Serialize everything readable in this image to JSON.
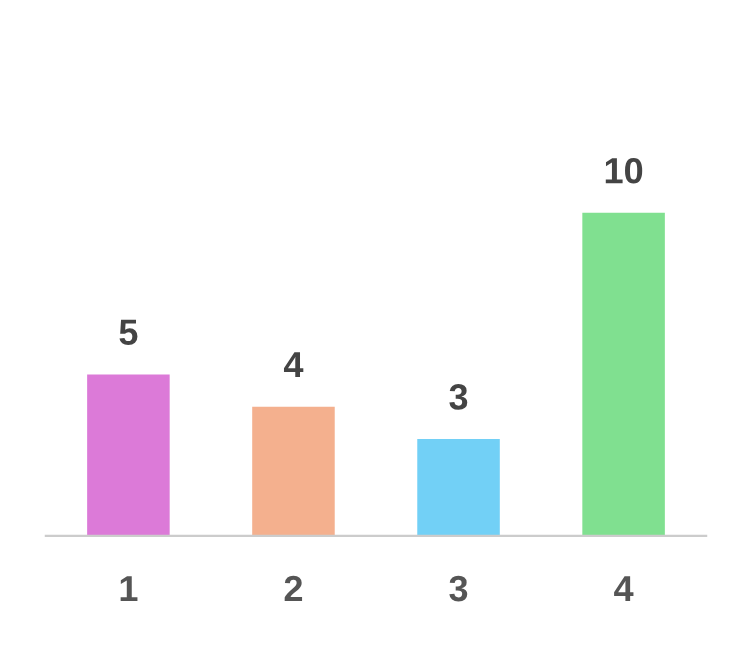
{
  "chart_data": {
    "type": "bar",
    "categories": [
      "1",
      "2",
      "3",
      "4"
    ],
    "values": [
      5,
      4,
      3,
      10
    ],
    "colors": [
      "#dc7ad8",
      "#f4b08e",
      "#72d0f6",
      "#80e090"
    ],
    "data_labels": true,
    "grid": false,
    "legend": false
  }
}
